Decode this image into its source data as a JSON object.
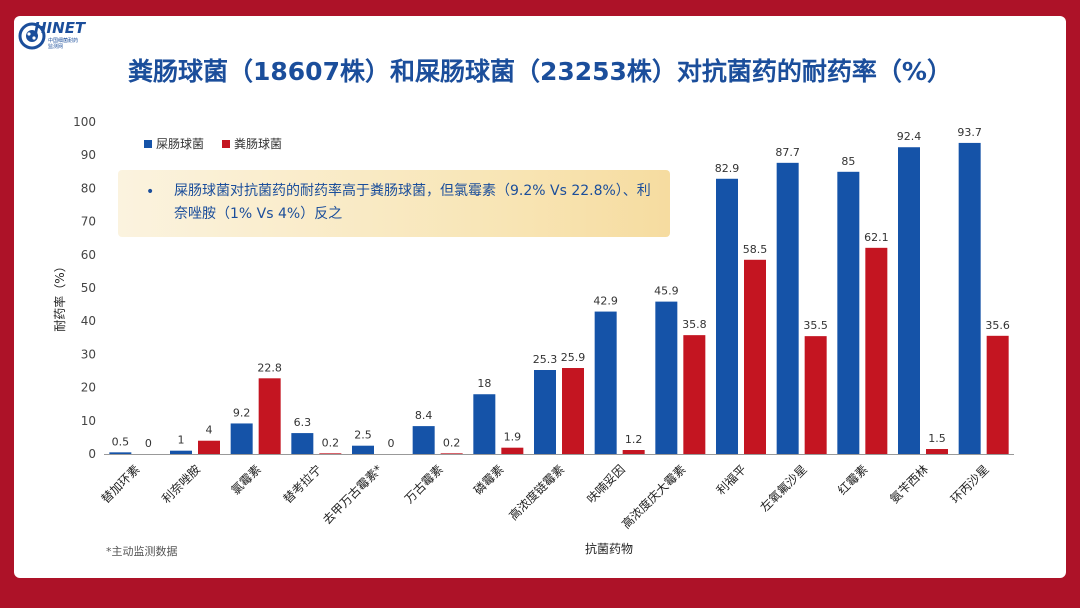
{
  "header": {
    "logo_text": "HINET",
    "logo_letter": "C",
    "logo_sub": "中国细菌耐药",
    "logo_sub2": "监测网",
    "title": "粪肠球菌（18607株）和屎肠球菌（23253株）对抗菌药的耐药率（%）"
  },
  "footnote": "*主动监测数据",
  "callout": {
    "bullet": "•",
    "text": "屎肠球菌对抗菌药的耐药率高于粪肠球菌，但氯霉素（9.2% Vs 22.8%）、利奈唑胺（1% Vs 4%）反之"
  },
  "colors": {
    "series1": "#1553a8",
    "series2": "#c41521",
    "background": "#ad1228"
  },
  "chart_data": {
    "type": "bar",
    "title": "粪肠球菌（18607株）和屎肠球菌（23253株）对抗菌药的耐药率（%）",
    "xlabel": "抗菌药物",
    "ylabel": "耐药率（%）",
    "ylim": [
      0,
      100
    ],
    "yticks": [
      "0",
      "10",
      "20",
      "30",
      "40",
      "50",
      "60",
      "70",
      "80",
      "90",
      "100"
    ],
    "legend_position": "top-left",
    "categories": [
      "替加环素",
      "利奈唑胺",
      "氯霉素",
      "替考拉宁",
      "去甲万古霉素*",
      "万古霉素",
      "磷霉素",
      "高浓度链霉素",
      "呋喃妥因",
      "高浓度庆大霉素",
      "利福平",
      "左氧氟沙星",
      "红霉素",
      "氨苄西林",
      "环丙沙星"
    ],
    "series": [
      {
        "name": "屎肠球菌",
        "values": [
          0.5,
          1,
          9.2,
          6.3,
          2.5,
          8.4,
          18,
          25.3,
          42.9,
          45.9,
          82.9,
          87.7,
          85,
          92.4,
          93.7
        ]
      },
      {
        "name": "粪肠球菌",
        "values": [
          0,
          4,
          22.8,
          0.2,
          0,
          0.2,
          1.9,
          25.9,
          1.2,
          35.8,
          58.5,
          35.5,
          62.1,
          1.5,
          35.6
        ]
      }
    ]
  }
}
